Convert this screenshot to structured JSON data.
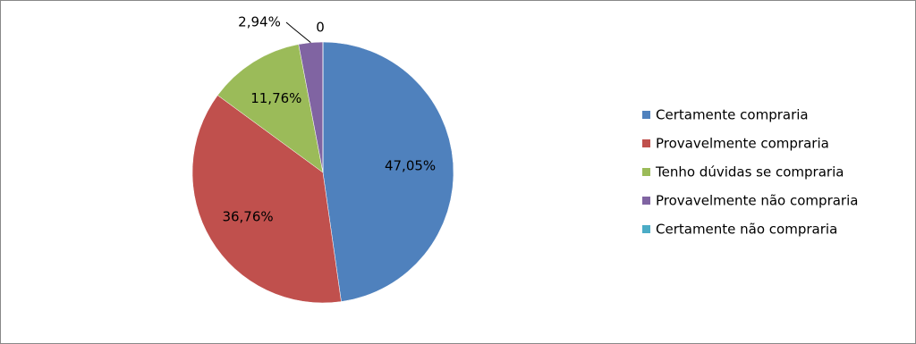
{
  "chart_data": {
    "type": "pie",
    "categories": [
      "Certamente compraria",
      "Provavelmente compraria",
      "Tenho dúvidas se compraria",
      "Provavelmente não compraria",
      "Certamente não compraria"
    ],
    "values": [
      47.05,
      36.76,
      11.76,
      2.94,
      0
    ],
    "value_labels": [
      "47,05%",
      "36,76%",
      "11,76%",
      "2,94%",
      "0"
    ],
    "colors": [
      "#4f81bd",
      "#c0504d",
      "#9bbb59",
      "#8064a2",
      "#4bacc6"
    ],
    "legend": "right"
  }
}
